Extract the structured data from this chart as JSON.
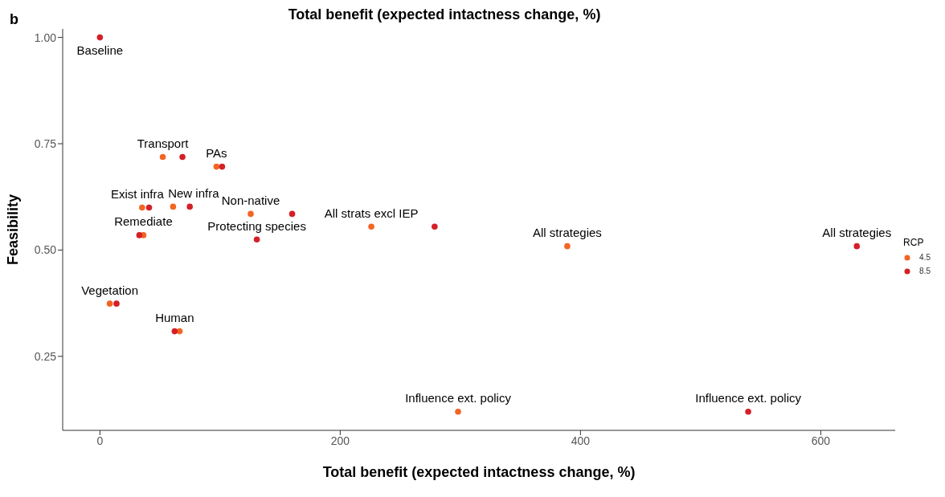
{
  "chart_data": {
    "type": "scatter",
    "title": "Total benefit (expected intactness change, %)",
    "xlabel": "Total benefit (expected intactness change, %)",
    "ylabel": "Feasibility",
    "legend_title": "RCP",
    "legend": "right",
    "grid": false,
    "marker": "circle",
    "xlim": [
      -31,
      662
    ],
    "ylim": [
      0.076,
      1.02
    ],
    "xticks": [
      0,
      200,
      400,
      600
    ],
    "yticks": [
      {
        "value": 0.25,
        "label": "0.25"
      },
      {
        "value": 0.5,
        "label": "0.50"
      },
      {
        "value": 0.75,
        "label": "0.75"
      },
      {
        "value": 1.0,
        "label": "1.00"
      }
    ],
    "series": [
      {
        "name": "4.5",
        "color": "#f26522",
        "x": [
          52.3,
          97.0,
          35.1,
          60.9,
          125.5,
          36.2,
          8.2,
          66.3,
          225.9,
          389.0,
          298.1
        ],
        "values": [
          0.719,
          0.696,
          0.6,
          0.602,
          0.585,
          0.535,
          0.374,
          0.309,
          0.555,
          0.509,
          0.12
        ]
      },
      {
        "name": "8.5",
        "color": "#d42027",
        "x": [
          0,
          68.7,
          101.7,
          40.9,
          74.8,
          160.0,
          32.8,
          130.6,
          13.8,
          62.2,
          278.6,
          630.0,
          539.6
        ],
        "values": [
          1.0,
          0.719,
          0.696,
          0.6,
          0.602,
          0.585,
          0.535,
          0.525,
          0.374,
          0.309,
          0.555,
          0.509,
          0.12
        ]
      }
    ],
    "annotations": [
      "b",
      {
        "text": "Baseline",
        "x": 0,
        "y": 1.0
      },
      {
        "text": "Transport",
        "x": 52.3,
        "y": 0.719
      },
      {
        "text": "PAs",
        "x": 97.0,
        "y": 0.696
      },
      {
        "text": "Exist infra",
        "x": 35.1,
        "y": 0.6
      },
      {
        "text": "New infra",
        "x": 74.8,
        "y": 0.602
      },
      {
        "text": "Non-native",
        "x": 125.5,
        "y": 0.585
      },
      {
        "text": "Remediate",
        "x": 36.2,
        "y": 0.535
      },
      {
        "text": "Protecting species",
        "x": 130.6,
        "y": 0.525
      },
      {
        "text": "Vegetation",
        "x": 8.2,
        "y": 0.374
      },
      {
        "text": "Human",
        "x": 62.2,
        "y": 0.309
      },
      {
        "text": "All strats excl IEP",
        "x": 225.9,
        "y": 0.555
      },
      {
        "text": "All strategies",
        "x": 389.0,
        "y": 0.509
      },
      {
        "text": "All strategies",
        "x": 630.0,
        "y": 0.509
      },
      {
        "text": "Influence ext. policy",
        "x": 298.1,
        "y": 0.12
      },
      {
        "text": "Influence ext. policy",
        "x": 539.6,
        "y": 0.12
      }
    ]
  }
}
